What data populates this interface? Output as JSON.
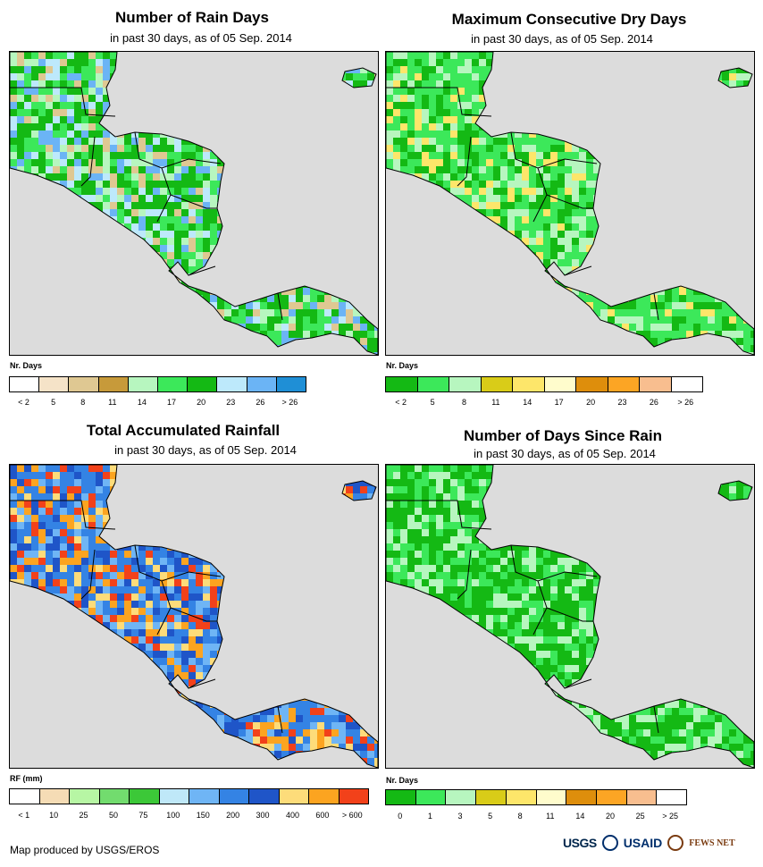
{
  "panels": [
    {
      "title": "Number of Rain Days",
      "subtitle": "in past 30 days, as of 05 Sep. 2014",
      "legend_caption": "Nr. Days",
      "legend_colors": [
        "#ffffff",
        "#f5e3c8",
        "#dfc892",
        "#c79a3a",
        "#b7f6bf",
        "#3ce85a",
        "#14b914",
        "#bde9fb",
        "#6bb4f5",
        "#1f8fd6"
      ],
      "legend_ticks": [
        "< 2",
        "5",
        "8",
        "11",
        "14",
        "17",
        "20",
        "23",
        "26",
        "> 26"
      ],
      "map_palette": [
        "#14b914",
        "#3ce85a",
        "#bde9fb",
        "#6bb4f5",
        "#b7f6bf",
        "#dfc892"
      ]
    },
    {
      "title": "Maximum Consecutive Dry Days",
      "subtitle": "in past 30 days, as of 05 Sep. 2014",
      "legend_caption": "Nr. Days",
      "legend_colors": [
        "#14b914",
        "#3ce85a",
        "#b7f6bf",
        "#d9cc18",
        "#fde66a",
        "#fffccc",
        "#de8e0c",
        "#fca524",
        "#f8be8f",
        "#ffffff"
      ],
      "legend_ticks": [
        "< 2",
        "5",
        "8",
        "11",
        "14",
        "17",
        "20",
        "23",
        "26",
        "> 26"
      ],
      "map_palette": [
        "#3ce85a",
        "#14b914",
        "#b7f6bf",
        "#fde66a"
      ]
    },
    {
      "title": "Total Accumulated Rainfall",
      "subtitle": "in past 30 days, as of 05 Sep. 2014",
      "legend_caption": "RF (mm)",
      "legend_colors": [
        "#ffffff",
        "#f5dcb5",
        "#b7f6a4",
        "#72dc6e",
        "#3cc838",
        "#bfe8f8",
        "#6fb5f5",
        "#3483e4",
        "#1f55c8",
        "#fddc7a",
        "#fca420",
        "#f2411a"
      ],
      "legend_ticks": [
        "< 1",
        "10",
        "25",
        "50",
        "75",
        "100",
        "150",
        "200",
        "300",
        "400",
        "600",
        "> 600"
      ],
      "map_palette": [
        "#3483e4",
        "#1f55c8",
        "#6fb5f5",
        "#fca420",
        "#fddc7a",
        "#f2411a"
      ]
    },
    {
      "title": "Number of Days Since Rain",
      "subtitle": "in past 30 days, as of 05 Sep. 2014",
      "legend_caption": "Nr. Days",
      "legend_colors": [
        "#14b914",
        "#3ce85a",
        "#b7f6bf",
        "#d9cc18",
        "#fde66a",
        "#fffccc",
        "#de8e0c",
        "#fca524",
        "#f8be8f",
        "#ffffff"
      ],
      "legend_ticks": [
        "0",
        "1",
        "3",
        "5",
        "8",
        "11",
        "14",
        "20",
        "25",
        "> 25"
      ],
      "map_palette": [
        "#14b914",
        "#3ce85a",
        "#b7f6bf"
      ]
    }
  ],
  "footer": {
    "credit": "Map produced by USGS/EROS"
  },
  "logos": {
    "usgs": "USGS",
    "usaid": "USAID",
    "fews": "FEWS NET"
  }
}
